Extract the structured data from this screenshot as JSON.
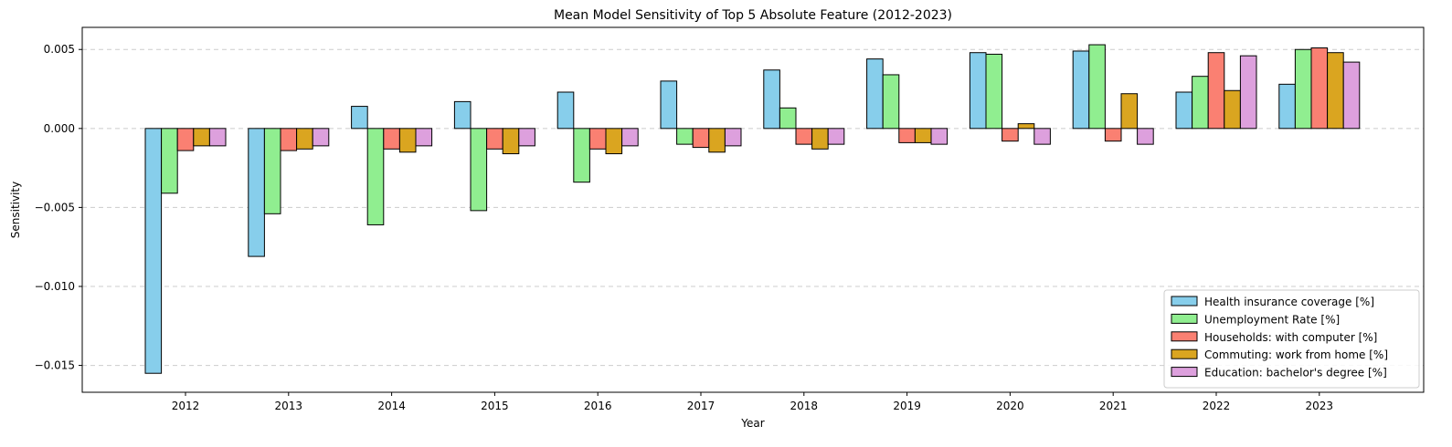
{
  "chart_data": {
    "type": "bar",
    "title": "Mean Model Sensitivity of Top 5 Absolute Feature (2012-2023)",
    "xlabel": "Year",
    "ylabel": "Sensitivity",
    "ylim": [
      -0.0167,
      0.0064
    ],
    "yticks": [
      -0.015,
      -0.01,
      -0.005,
      0.0,
      0.005
    ],
    "ytick_labels": [
      "−0.015",
      "−0.010",
      "−0.005",
      "0.000",
      "0.005"
    ],
    "grid": "y-dashed",
    "legend_position": "lower-right",
    "categories": [
      "2012",
      "2013",
      "2014",
      "2015",
      "2016",
      "2017",
      "2018",
      "2019",
      "2020",
      "2021",
      "2022",
      "2023"
    ],
    "series": [
      {
        "name": "Health insurance coverage [%]",
        "color": "#87ceeb",
        "values": [
          -0.0155,
          -0.0081,
          0.0014,
          0.0017,
          0.0023,
          0.003,
          0.0037,
          0.0044,
          0.0048,
          0.0049,
          0.0023,
          0.0028
        ]
      },
      {
        "name": "Unemployment Rate [%]",
        "color": "#90ee90",
        "values": [
          -0.0041,
          -0.0054,
          -0.0061,
          -0.0052,
          -0.0034,
          -0.001,
          0.0013,
          0.0034,
          0.0047,
          0.0053,
          0.0033,
          0.005
        ]
      },
      {
        "name": "Households: with computer [%]",
        "color": "#fa8072",
        "values": [
          -0.0014,
          -0.0014,
          -0.0013,
          -0.0013,
          -0.0013,
          -0.0012,
          -0.001,
          -0.0009,
          -0.0008,
          -0.0008,
          0.0048,
          0.0051
        ]
      },
      {
        "name": "Commuting: work from home [%]",
        "color": "#daa520",
        "values": [
          -0.0011,
          -0.0013,
          -0.0015,
          -0.0016,
          -0.0016,
          -0.0015,
          -0.0013,
          -0.0009,
          0.0003,
          0.0022,
          0.0024,
          0.0048
        ]
      },
      {
        "name": "Education: bachelor's degree [%]",
        "color": "#dda0dd",
        "values": [
          -0.0011,
          -0.0011,
          -0.0011,
          -0.0011,
          -0.0011,
          -0.0011,
          -0.001,
          -0.001,
          -0.001,
          -0.001,
          0.0046,
          0.0042
        ]
      }
    ]
  }
}
